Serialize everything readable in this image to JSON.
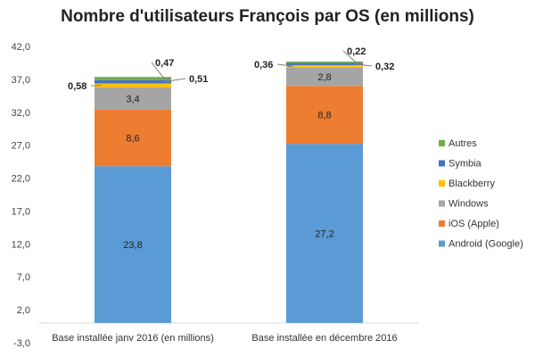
{
  "chart_data": {
    "type": "bar",
    "stacked": true,
    "title": "Nombre d'utilisateurs François par OS (en millions)",
    "categories": [
      "Base installée janv 2016 (en millions)",
      "Base installée en décembre 2016"
    ],
    "series": [
      {
        "name": "Android (Google)",
        "values": [
          23.8,
          27.2
        ],
        "labels": [
          "23,8",
          "27,2"
        ],
        "color": "#5B9BD5"
      },
      {
        "name": "iOS (Apple)",
        "values": [
          8.6,
          8.8
        ],
        "labels": [
          "8,6",
          "8,8"
        ],
        "color": "#ED7D31"
      },
      {
        "name": "Windows",
        "values": [
          3.4,
          2.8
        ],
        "labels": [
          "3,4",
          "2,8"
        ],
        "color": "#A5A5A5"
      },
      {
        "name": "Blackberry",
        "values": [
          0.58,
          0.36
        ],
        "labels": [
          "0,58",
          "0,36"
        ],
        "color": "#FFC000"
      },
      {
        "name": "Symbia",
        "values": [
          0.51,
          0.32
        ],
        "labels": [
          "0,51",
          "0,32"
        ],
        "color": "#4472C4"
      },
      {
        "name": "Autres",
        "values": [
          0.47,
          0.22
        ],
        "labels": [
          "0,47",
          "0,22"
        ],
        "color": "#70AD47"
      }
    ],
    "y_ticks": [
      "42,0",
      "37,0",
      "32,0",
      "27,0",
      "22,0",
      "17,0",
      "12,0",
      "7,0",
      "2,0",
      "-3,0"
    ],
    "ylim": [
      -3,
      42
    ],
    "xlabel": "",
    "ylabel": "",
    "grid": false,
    "legend": "right"
  }
}
